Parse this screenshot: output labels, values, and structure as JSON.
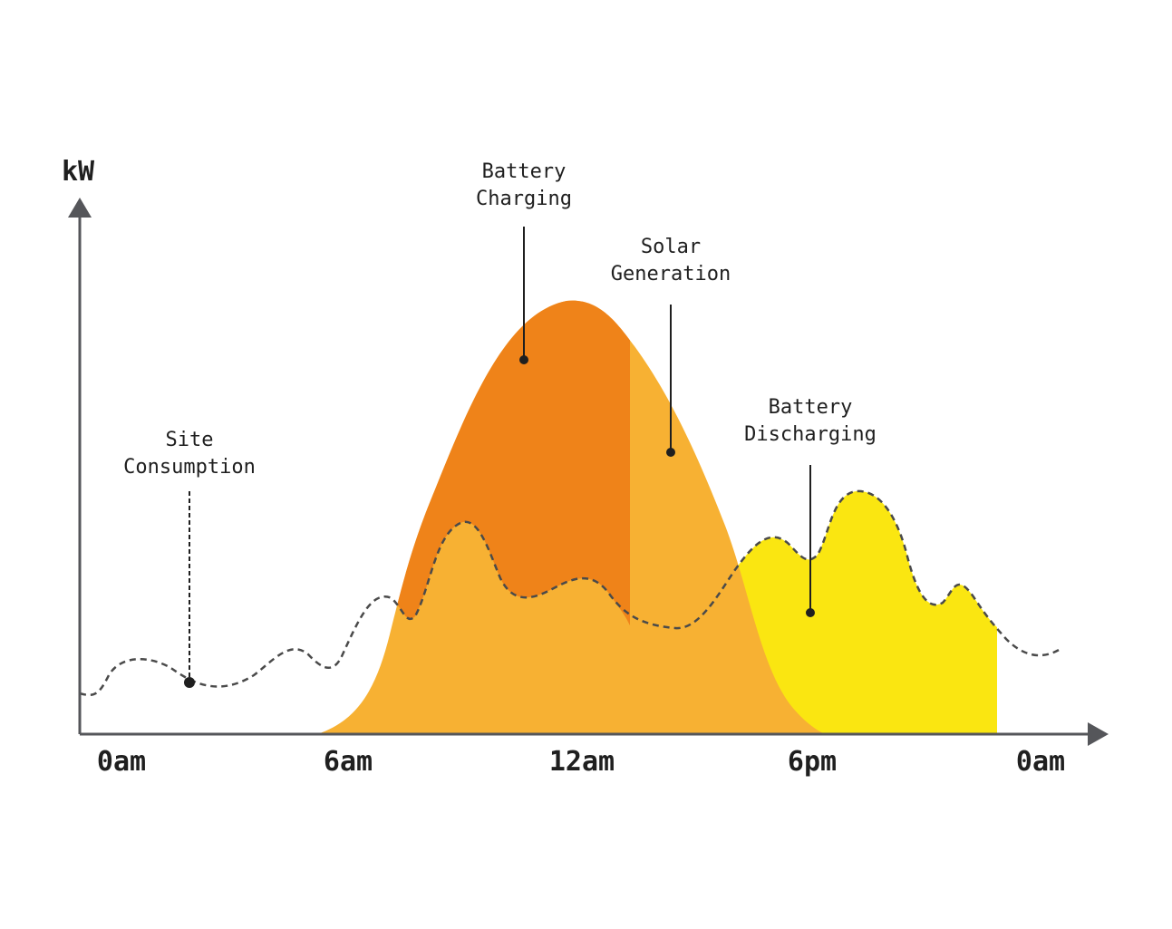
{
  "y_axis_unit": "kW",
  "x_ticks": [
    "0am",
    "6am",
    "12am",
    "6pm",
    "0am"
  ],
  "legend_labels": {
    "battery_charging": [
      "Battery",
      "Charging"
    ],
    "solar_generation": [
      "Solar",
      "Generation"
    ],
    "battery_discharging": [
      "Battery",
      "Discharging"
    ],
    "site_consumption": [
      "Site",
      "Consumption"
    ]
  },
  "colors": {
    "battery_charging": "#EF8319",
    "solar_generation": "#F7B133",
    "battery_discharging": "#FAE611",
    "site_consumption": "#4a4a4a",
    "axis": "#55565a",
    "text": "#1f1f1f"
  }
}
